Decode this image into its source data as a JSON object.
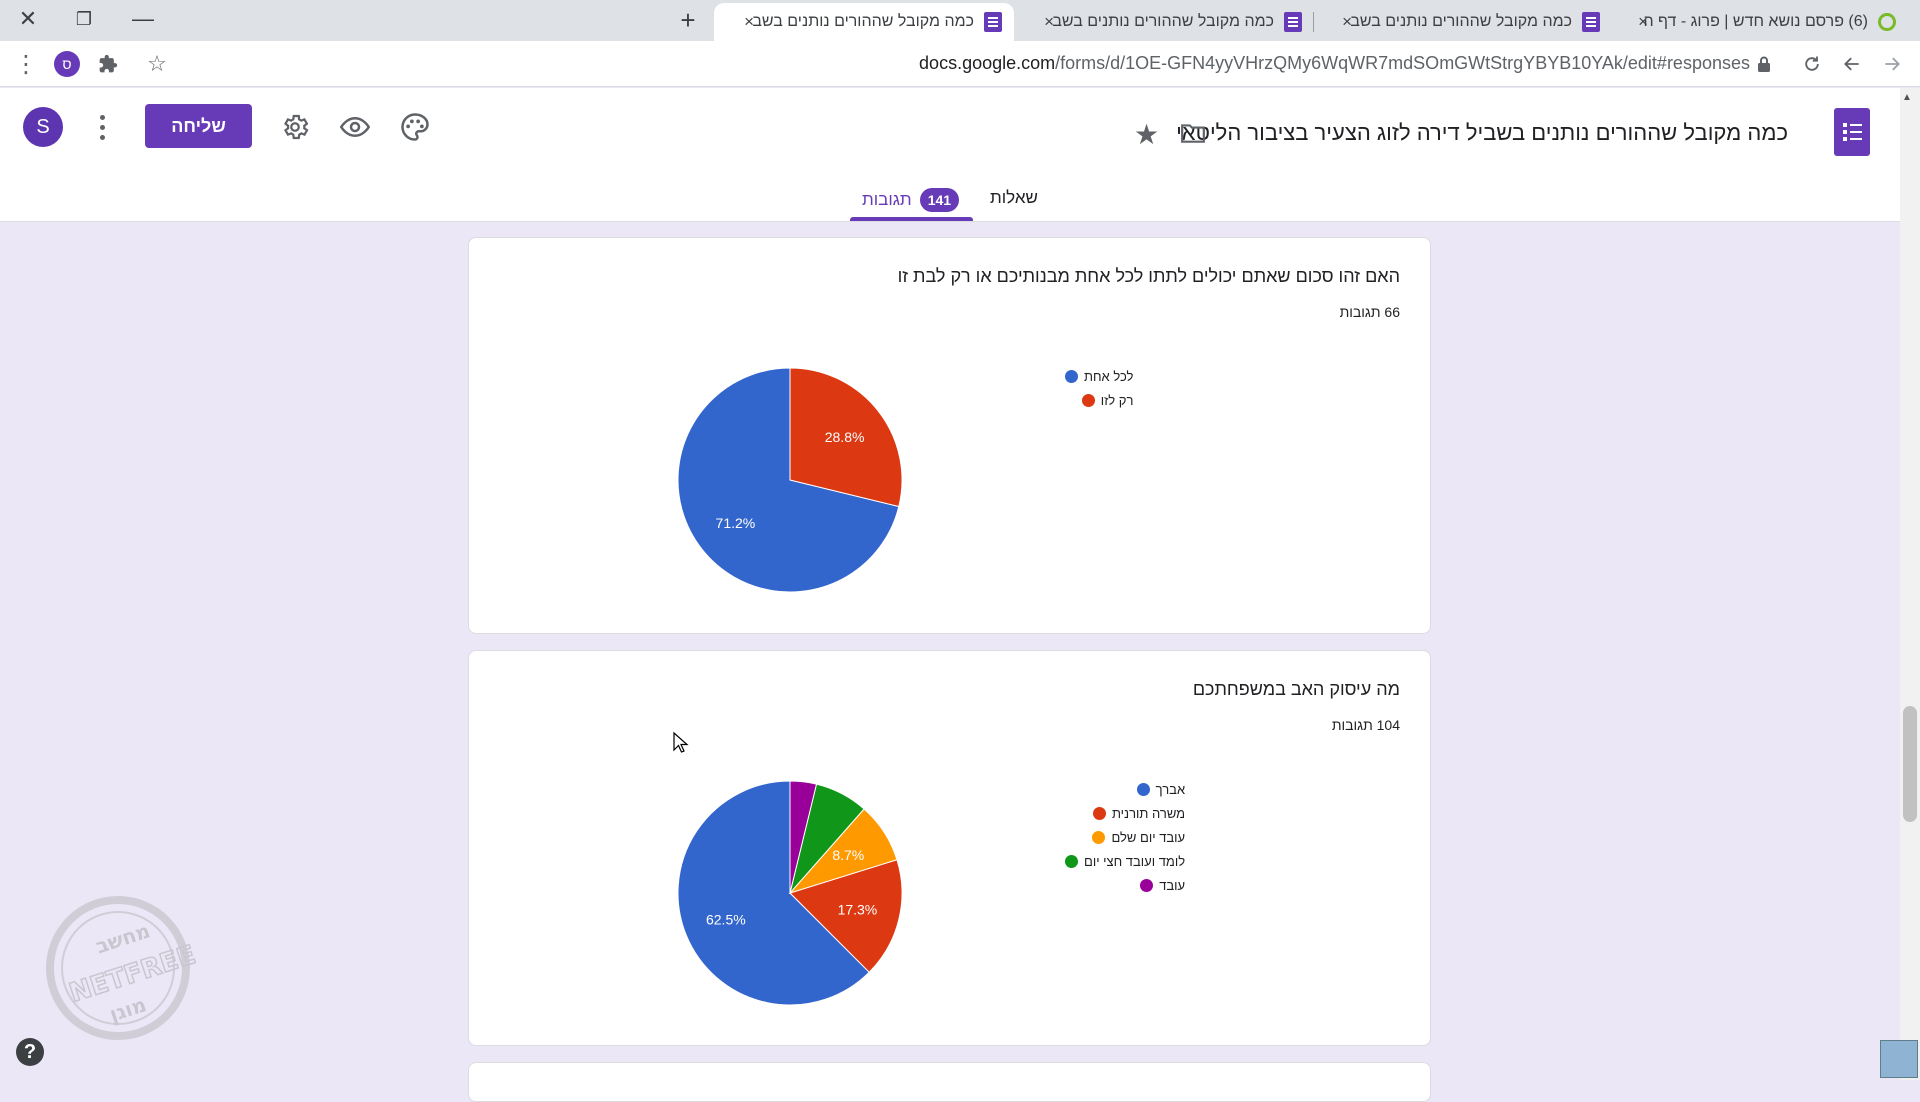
{
  "browser": {
    "tabs": [
      {
        "title": "(6) פרסם נושא חדש | פרוג - דף ה",
        "close": "×",
        "icon": "circle-c-icon"
      },
      {
        "title": "כמה מקובל שההורים נותנים בשב",
        "close": "×",
        "icon": "google-forms-icon"
      },
      {
        "title": "כמה מקובל שההורים נותנים בשב",
        "close": "×",
        "icon": "google-forms-icon"
      },
      {
        "title": "כמה מקובל שההורים נותנים בשב",
        "close": "×",
        "icon": "google-forms-icon",
        "active": true
      }
    ],
    "new_tab": "+",
    "window_controls": {
      "close": "✕",
      "restore": "❐",
      "minimize": "—"
    },
    "profile_initial": "ס",
    "url_host": "docs.google.com",
    "url_path": "/forms/d/1OE-GFN4yyVHrzQMy6WqWR7mdSOmGWtStrgYBYB10YAk/edit#responses"
  },
  "header": {
    "form_title": "כמה מקובל שההורים נותנים בשביל דירה לזוג הצעיר בציבור הליטאי",
    "send_label": "שליחה",
    "avatar_initial": "S",
    "tabs": {
      "questions": "שאלות",
      "responses": "תגובות",
      "responses_count": "141"
    }
  },
  "questions": [
    {
      "title": "האם זהו סכום שאתם יכולים לתתו לכל אחת מבנותיכם או רק לבת זו",
      "count": "66 תגובות",
      "chart_data": {
        "type": "pie",
        "series": [
          {
            "name": "לכל אחת",
            "value": 71.2,
            "color": "#3366cc",
            "label": "71.2%"
          },
          {
            "name": "רק לזו",
            "value": 28.8,
            "color": "#dc3912",
            "label": "28.8%"
          }
        ],
        "legend": "right"
      }
    },
    {
      "title": "מה עיסוק האב במשפחתכם",
      "count": "104 תגובות",
      "chart_data": {
        "type": "pie",
        "series": [
          {
            "name": "אברך",
            "value": 62.5,
            "color": "#3366cc",
            "label": "62.5%"
          },
          {
            "name": "משרה תורנית",
            "value": 17.3,
            "color": "#dc3912",
            "label": "17.3%"
          },
          {
            "name": "עובד יום שלם",
            "value": 8.7,
            "color": "#ff9900",
            "label": "8.7%"
          },
          {
            "name": "לומד ועובד חצי יום",
            "value": 7.7,
            "color": "#109618",
            "label": ""
          },
          {
            "name": "עובד",
            "value": 3.8,
            "color": "#990099",
            "label": ""
          }
        ],
        "legend": "right"
      }
    }
  ],
  "watermark": {
    "line1": "מחשב",
    "line2": "NETFREE",
    "line3": "מוגן"
  },
  "help": "?"
}
